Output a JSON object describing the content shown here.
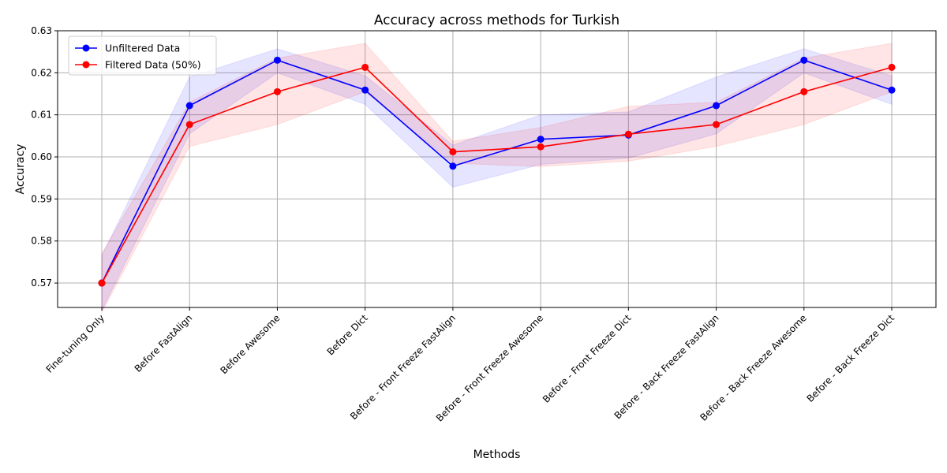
{
  "chart_data": {
    "type": "line",
    "title": "Accuracy across methods for Turkish",
    "xlabel": "Methods",
    "ylabel": "Accuracy",
    "ylim": [
      0.5642,
      0.63
    ],
    "yticks": [
      "0.57",
      "0.58",
      "0.59",
      "0.60",
      "0.61",
      "0.62",
      "0.63"
    ],
    "ytick_values": [
      0.57,
      0.58,
      0.59,
      0.6,
      0.61,
      0.62,
      0.63
    ],
    "grid": true,
    "legend_position": "upper-left",
    "categories": [
      "Fine-tuning Only",
      "Before FastAlign",
      "Before Awesome",
      "Before Dict",
      "Before - Front Freeze FastAlign",
      "Before - Front Freeze Awesome",
      "Before - Front Freeze Dict",
      "Before - Back Freeze FastAlign",
      "Before - Back Freeze Awesome",
      "Before - Back Freeze Dict"
    ],
    "series": [
      {
        "name": "Unfiltered Data",
        "color": "#0000ff",
        "band_color": "#0000ff",
        "values": [
          0.57,
          0.6122,
          0.623,
          0.6159,
          0.5978,
          0.6042,
          0.6052,
          0.6122,
          0.623,
          0.6159
        ],
        "lower": [
          0.5635,
          0.6055,
          0.62,
          0.6125,
          0.5928,
          0.5982,
          0.5997,
          0.6055,
          0.62,
          0.6125
        ],
        "upper": [
          0.5765,
          0.619,
          0.6257,
          0.6193,
          0.6028,
          0.61,
          0.6107,
          0.619,
          0.6257,
          0.6193
        ]
      },
      {
        "name": "Filtered Data (50%)",
        "color": "#ff0000",
        "band_color": "#ff0000",
        "values": [
          0.57,
          0.6077,
          0.6155,
          0.6213,
          0.6012,
          0.6024,
          0.6054,
          0.6077,
          0.6155,
          0.6213
        ],
        "lower": [
          0.563,
          0.6025,
          0.6077,
          0.6155,
          0.5985,
          0.5977,
          0.599,
          0.6025,
          0.6077,
          0.6155
        ],
        "upper": [
          0.577,
          0.613,
          0.6235,
          0.627,
          0.6037,
          0.607,
          0.612,
          0.613,
          0.6235,
          0.627
        ]
      }
    ]
  }
}
